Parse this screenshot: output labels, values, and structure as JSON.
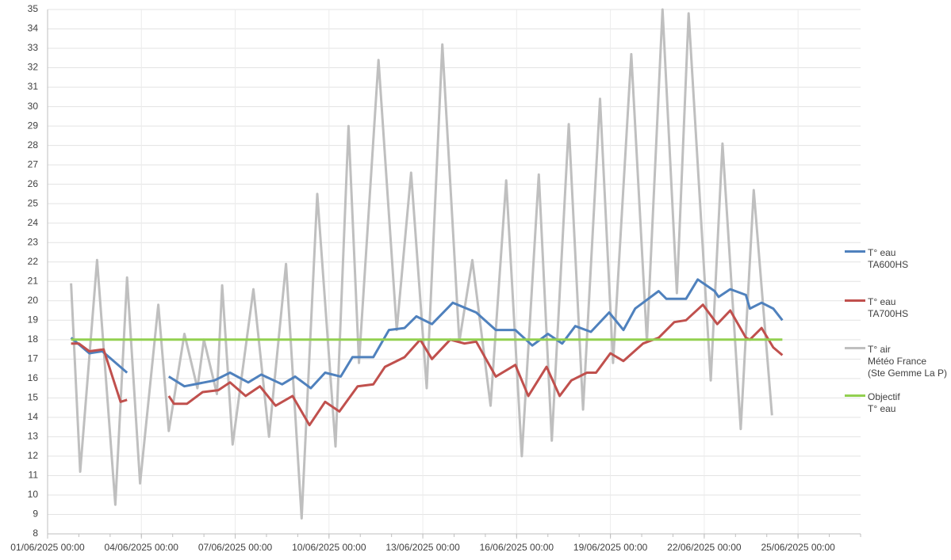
{
  "chart_data": {
    "type": "line",
    "xlim": [
      "01/06/2025 00:00",
      "27/06/2025 00:00"
    ],
    "xticks": [
      "01/06/2025 00:00",
      "04/06/2025 00:00",
      "07/06/2025 00:00",
      "10/06/2025 00:00",
      "13/06/2025 00:00",
      "16/06/2025 00:00",
      "19/06/2025 00:00",
      "22/06/2025 00:00",
      "25/06/2025 00:00"
    ],
    "ylim": [
      8,
      35
    ],
    "yticks": [
      8,
      9,
      10,
      11,
      12,
      13,
      14,
      15,
      16,
      17,
      18,
      19,
      20,
      21,
      22,
      23,
      24,
      25,
      26,
      27,
      28,
      29,
      30,
      31,
      32,
      33,
      34,
      35
    ],
    "grid": true,
    "legend": "right",
    "series": [
      {
        "name": "T° air\nMétéo France\n(Ste Gemme La P)",
        "color": "#bfbfbf",
        "x": [
          "01/06/2025 18:00",
          "02/06/2025 01:00",
          "02/06/2025 14:00",
          "03/06/2025 04:00",
          "03/06/2025 13:00",
          "03/06/2025 23:00",
          "04/06/2025 13:00",
          "04/06/2025 21:00",
          "05/06/2025 09:00",
          "05/06/2025 19:00",
          "06/06/2025 00:00",
          "06/06/2025 10:00",
          "06/06/2025 14:00",
          "06/06/2025 22:00",
          "07/06/2025 14:00",
          "08/06/2025 02:00",
          "08/06/2025 15:00",
          "09/06/2025 03:00",
          "09/06/2025 15:00",
          "10/06/2025 05:00",
          "10/06/2025 15:00",
          "10/06/2025 23:00",
          "11/06/2025 14:00",
          "12/06/2025 04:00",
          "12/06/2025 15:00",
          "13/06/2025 03:00",
          "13/06/2025 15:00",
          "14/06/2025 04:00",
          "14/06/2025 14:00",
          "15/06/2025 04:00",
          "15/06/2025 16:00",
          "16/06/2025 04:00",
          "16/06/2025 17:00",
          "17/06/2025 03:00",
          "17/06/2025 16:00",
          "18/06/2025 03:00",
          "18/06/2025 16:00",
          "19/06/2025 02:00",
          "19/06/2025 16:00",
          "20/06/2025 04:00",
          "20/06/2025 16:00",
          "21/06/2025 03:00",
          "21/06/2025 12:00",
          "22/06/2025 05:00",
          "22/06/2025 14:00",
          "23/06/2025 04:00",
          "23/06/2025 14:00",
          "24/06/2025 04:00"
        ],
        "values": [
          20.9,
          11.2,
          22.1,
          9.5,
          21.2,
          10.6,
          19.8,
          13.3,
          18.3,
          15.5,
          18.0,
          15.2,
          20.8,
          12.6,
          20.6,
          13.0,
          21.9,
          8.8,
          25.5,
          12.5,
          29.0,
          16.8,
          32.4,
          18.5,
          26.6,
          15.5,
          33.2,
          17.9,
          22.1,
          14.6,
          26.2,
          12.0,
          26.5,
          12.8,
          29.1,
          14.4,
          30.4,
          16.8,
          32.7,
          17.9,
          35.0,
          20.4,
          34.8,
          15.9,
          28.1,
          13.4,
          25.7,
          14.1
        ]
      },
      {
        "name": "T° eau\nTA600HS",
        "color": "#4f81bd",
        "x": [
          "01/06/2025 18:00",
          "02/06/2025 08:00",
          "02/06/2025 18:00",
          "03/06/2025 13:00",
          "04/06/2025 05:00",
          "04/06/2025 21:00",
          "05/06/2025 09:00",
          "06/06/2025 08:00",
          "06/06/2025 20:00",
          "07/06/2025 10:00",
          "07/06/2025 20:00",
          "08/06/2025 12:00",
          "08/06/2025 22:00",
          "09/06/2025 10:00",
          "09/06/2025 21:00",
          "10/06/2025 09:00",
          "10/06/2025 18:00",
          "11/06/2025 10:00",
          "11/06/2025 22:00",
          "12/06/2025 10:00",
          "12/06/2025 19:00",
          "13/06/2025 07:00",
          "13/06/2025 23:00",
          "14/06/2025 17:00",
          "15/06/2025 08:00",
          "15/06/2025 23:00",
          "16/06/2025 12:00",
          "17/06/2025 00:00",
          "17/06/2025 11:00",
          "17/06/2025 21:00",
          "18/06/2025 09:00",
          "18/06/2025 23:00",
          "19/06/2025 10:00",
          "19/06/2025 19:00",
          "20/06/2025 13:00",
          "20/06/2025 19:00",
          "21/06/2025 10:00",
          "21/06/2025 19:00",
          "22/06/2025 08:00",
          "22/06/2025 11:00",
          "22/06/2025 20:00",
          "23/06/2025 08:00",
          "23/06/2025 11:00",
          "23/06/2025 20:00",
          "24/06/2025 05:00",
          "24/06/2025 12:00"
        ],
        "values": [
          18.1,
          17.3,
          17.4,
          16.3,
          null,
          16.1,
          15.6,
          15.9,
          16.3,
          15.8,
          16.2,
          15.7,
          16.1,
          15.5,
          16.3,
          16.1,
          17.1,
          17.1,
          18.5,
          18.6,
          19.2,
          18.8,
          19.9,
          19.4,
          18.5,
          18.5,
          17.7,
          18.3,
          17.8,
          18.7,
          18.4,
          19.4,
          18.5,
          19.6,
          20.5,
          20.1,
          20.1,
          21.1,
          20.5,
          20.2,
          20.6,
          20.3,
          19.6,
          19.9,
          19.6,
          19.0
        ]
      },
      {
        "name": "T° eau\nTA700HS",
        "color": "#c0504d",
        "x": [
          "01/06/2025 18:00",
          "02/06/2025 00:00",
          "02/06/2025 08:00",
          "02/06/2025 19:00",
          "03/06/2025 08:00",
          "03/06/2025 13:00",
          "04/06/2025 05:00",
          "04/06/2025 21:00",
          "05/06/2025 01:00",
          "05/06/2025 11:00",
          "05/06/2025 23:00",
          "06/06/2025 11:00",
          "06/06/2025 20:00",
          "07/06/2025 08:00",
          "07/06/2025 19:00",
          "08/06/2025 07:00",
          "08/06/2025 20:00",
          "09/06/2025 09:00",
          "09/06/2025 21:00",
          "10/06/2025 08:00",
          "10/06/2025 22:00",
          "11/06/2025 10:00",
          "11/06/2025 19:00",
          "12/06/2025 10:00",
          "12/06/2025 22:00",
          "13/06/2025 07:00",
          "13/06/2025 21:00",
          "14/06/2025 08:00",
          "14/06/2025 17:00",
          "15/06/2025 08:00",
          "15/06/2025 23:00",
          "16/06/2025 09:00",
          "16/06/2025 23:00",
          "17/06/2025 09:00",
          "17/06/2025 18:00",
          "18/06/2025 06:00",
          "18/06/2025 13:00",
          "19/06/2025 00:00",
          "19/06/2025 10:00",
          "20/06/2025 01:00",
          "20/06/2025 13:00",
          "21/06/2025 01:00",
          "21/06/2025 10:00",
          "21/06/2025 23:00",
          "22/06/2025 10:00",
          "22/06/2025 20:00",
          "23/06/2025 08:00",
          "23/06/2025 11:00",
          "23/06/2025 20:00",
          "24/06/2025 05:00",
          "24/06/2025 12:00"
        ],
        "values": [
          17.8,
          17.8,
          17.4,
          17.5,
          14.8,
          14.9,
          null,
          15.1,
          14.7,
          14.7,
          15.3,
          15.4,
          15.8,
          15.1,
          15.6,
          14.6,
          15.1,
          13.6,
          14.8,
          14.3,
          15.6,
          15.7,
          16.6,
          17.1,
          18.0,
          17.0,
          18.0,
          17.8,
          17.9,
          16.1,
          16.7,
          15.1,
          16.6,
          15.1,
          15.9,
          16.3,
          16.3,
          17.3,
          16.9,
          17.8,
          18.1,
          18.9,
          19.0,
          19.8,
          18.8,
          19.5,
          18.1,
          18.0,
          18.6,
          17.6,
          17.2
        ]
      },
      {
        "name": "Objectif\nT° eau",
        "color": "#92d050",
        "x": [
          "01/06/2025 18:00",
          "24/06/2025 12:00"
        ],
        "values": [
          18,
          18
        ]
      }
    ],
    "legend_order": [
      1,
      2,
      0,
      3
    ]
  }
}
